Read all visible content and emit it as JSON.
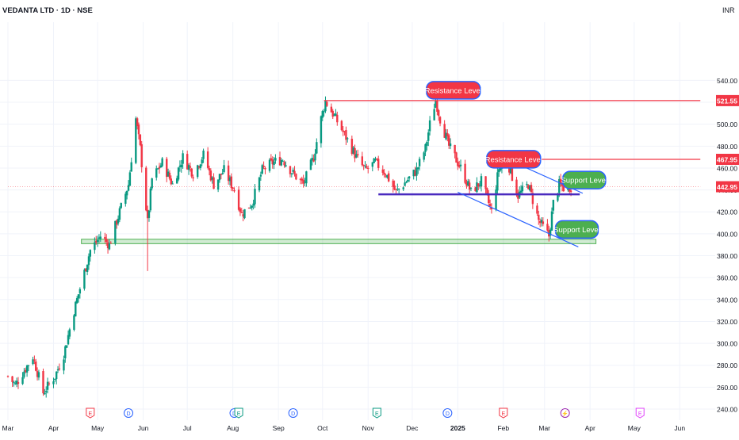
{
  "header": {
    "title": "VEDANTA LTD · 1D · NSE",
    "currency": "INR"
  },
  "chart_data": {
    "type": "candlestick",
    "title": "VEDANTA LTD · 1D · NSE",
    "ylabel": "INR",
    "ylim": [
      232,
      552
    ],
    "y_ticks": [
      240,
      260,
      280,
      300,
      320,
      340,
      360,
      380,
      400,
      420,
      440,
      460,
      480,
      500,
      520,
      540
    ],
    "months": [
      {
        "label": "Mar",
        "date": "2024-03-01"
      },
      {
        "label": "Apr",
        "date": "2024-04-01"
      },
      {
        "label": "May",
        "date": "2024-05-01"
      },
      {
        "label": "Jun",
        "date": "2024-06-01"
      },
      {
        "label": "Jul",
        "date": "2024-07-01"
      },
      {
        "label": "Aug",
        "date": "2024-08-01"
      },
      {
        "label": "Sep",
        "date": "2024-09-01"
      },
      {
        "label": "Oct",
        "date": "2024-10-01"
      },
      {
        "label": "Nov",
        "date": "2024-11-01"
      },
      {
        "label": "Dec",
        "date": "2024-12-01"
      },
      {
        "label": "2025",
        "date": "2025-01-01"
      },
      {
        "label": "Feb",
        "date": "2025-02-01"
      },
      {
        "label": "Mar",
        "date": "2025-03-01"
      },
      {
        "label": "Apr",
        "date": "2025-04-01"
      },
      {
        "label": "May",
        "date": "2025-05-01"
      },
      {
        "label": "Jun",
        "date": "2025-06-01"
      }
    ],
    "price_path": [
      [
        "2024-03-01",
        270
      ],
      [
        "2024-03-06",
        262
      ],
      [
        "2024-03-12",
        275
      ],
      [
        "2024-03-18",
        288
      ],
      [
        "2024-03-25",
        255
      ],
      [
        "2024-04-02",
        270
      ],
      [
        "2024-04-08",
        290
      ],
      [
        "2024-04-15",
        330
      ],
      [
        "2024-04-19",
        350
      ],
      [
        "2024-04-26",
        385
      ],
      [
        "2024-05-03",
        398
      ],
      [
        "2024-05-09",
        390
      ],
      [
        "2024-05-16",
        420
      ],
      [
        "2024-05-22",
        445
      ],
      [
        "2024-05-27",
        505
      ],
      [
        "2024-05-30",
        478
      ],
      [
        "2024-06-04",
        410
      ],
      [
        "2024-06-07",
        450
      ],
      [
        "2024-06-14",
        465
      ],
      [
        "2024-06-21",
        445
      ],
      [
        "2024-06-28",
        470
      ],
      [
        "2024-07-05",
        455
      ],
      [
        "2024-07-12",
        472
      ],
      [
        "2024-07-19",
        445
      ],
      [
        "2024-07-26",
        458
      ],
      [
        "2024-08-02",
        440
      ],
      [
        "2024-08-07",
        418
      ],
      [
        "2024-08-14",
        428
      ],
      [
        "2024-08-21",
        458
      ],
      [
        "2024-08-28",
        465
      ],
      [
        "2024-09-04",
        468
      ],
      [
        "2024-09-11",
        455
      ],
      [
        "2024-09-18",
        445
      ],
      [
        "2024-09-25",
        470
      ],
      [
        "2024-09-30",
        505
      ],
      [
        "2024-10-03",
        521
      ],
      [
        "2024-10-10",
        505
      ],
      [
        "2024-10-17",
        488
      ],
      [
        "2024-10-24",
        470
      ],
      [
        "2024-10-30",
        458
      ],
      [
        "2024-11-06",
        465
      ],
      [
        "2024-11-13",
        455
      ],
      [
        "2024-11-20",
        438
      ],
      [
        "2024-11-27",
        448
      ],
      [
        "2024-12-04",
        458
      ],
      [
        "2024-12-10",
        478
      ],
      [
        "2024-12-13",
        500
      ],
      [
        "2024-12-17",
        522
      ],
      [
        "2024-12-20",
        505
      ],
      [
        "2024-12-26",
        480
      ],
      [
        "2025-01-03",
        460
      ],
      [
        "2025-01-10",
        438
      ],
      [
        "2025-01-17",
        448
      ],
      [
        "2025-01-24",
        420
      ],
      [
        "2025-01-29",
        460
      ],
      [
        "2025-02-04",
        465
      ],
      [
        "2025-02-11",
        435
      ],
      [
        "2025-02-18",
        445
      ],
      [
        "2025-02-25",
        412
      ],
      [
        "2025-03-04",
        398
      ],
      [
        "2025-03-07",
        428
      ],
      [
        "2025-03-11",
        445
      ],
      [
        "2025-03-14",
        442
      ],
      [
        "2025-03-19",
        443
      ]
    ],
    "big_wick_low": {
      "date": "2024-06-04",
      "low": 366
    },
    "levels": [
      {
        "name": "resistance-1",
        "value": 521.55,
        "label": "521.55",
        "color": "#f23645",
        "from": "2024-10-02",
        "to": "2025-06-15"
      },
      {
        "name": "resistance-2",
        "value": 467.95,
        "label": "467.95",
        "color": "#f23645",
        "from": "2025-02-03",
        "to": "2025-06-15"
      },
      {
        "name": "current",
        "value": 442.95,
        "label": "442.95",
        "color": "#f23645",
        "from": "2024-03-01",
        "to": "2025-06-15",
        "dotted": true
      }
    ],
    "support_zone": {
      "top": 395,
      "bottom": 391,
      "from": "2024-04-20",
      "to": "2025-04-05",
      "color": "#4caf50"
    },
    "purple_line": {
      "value": 436,
      "from": "2024-11-08",
      "to": "2025-03-25",
      "color": "#4a2bbf"
    },
    "channel_lines": [
      {
        "from": [
          "2025-02-02",
          469
        ],
        "to": [
          "2025-03-27",
          437
        ]
      },
      {
        "from": [
          "2025-01-01",
          438
        ],
        "to": [
          "2025-03-24",
          388
        ]
      }
    ],
    "annotations": [
      {
        "text": "Resistance Level",
        "kind": "resistance",
        "date": "2024-12-29",
        "value": 531
      },
      {
        "text": "Resistance Level",
        "kind": "resistance",
        "date": "2025-02-08",
        "value": 468
      },
      {
        "text": "Support Level",
        "kind": "support",
        "date": "2025-03-28",
        "value": 449
      },
      {
        "text": "Support Level",
        "kind": "support",
        "date": "2025-03-23",
        "value": 404
      }
    ],
    "events": [
      {
        "type": "E",
        "date": "2024-04-26",
        "color": "#f23645"
      },
      {
        "type": "D",
        "date": "2024-05-22",
        "color": "#2962ff"
      },
      {
        "type": "D",
        "date": "2024-08-02",
        "color": "#2962ff"
      },
      {
        "type": "E",
        "date": "2024-08-05",
        "color": "#089981"
      },
      {
        "type": "D",
        "date": "2024-09-11",
        "color": "#2962ff"
      },
      {
        "type": "E",
        "date": "2024-11-07",
        "color": "#089981"
      },
      {
        "type": "D",
        "date": "2024-12-25",
        "color": "#2962ff"
      },
      {
        "type": "E",
        "date": "2025-02-01",
        "color": "#f23645"
      },
      {
        "type": "⚡",
        "date": "2025-03-15",
        "color": "#9c27b0"
      },
      {
        "type": "E",
        "date": "2025-05-05",
        "color": "#e040fb"
      }
    ]
  },
  "colors": {
    "up": "#089981",
    "down": "#f23645",
    "axis_text": "#131722",
    "grid": "#f0f3fa"
  }
}
